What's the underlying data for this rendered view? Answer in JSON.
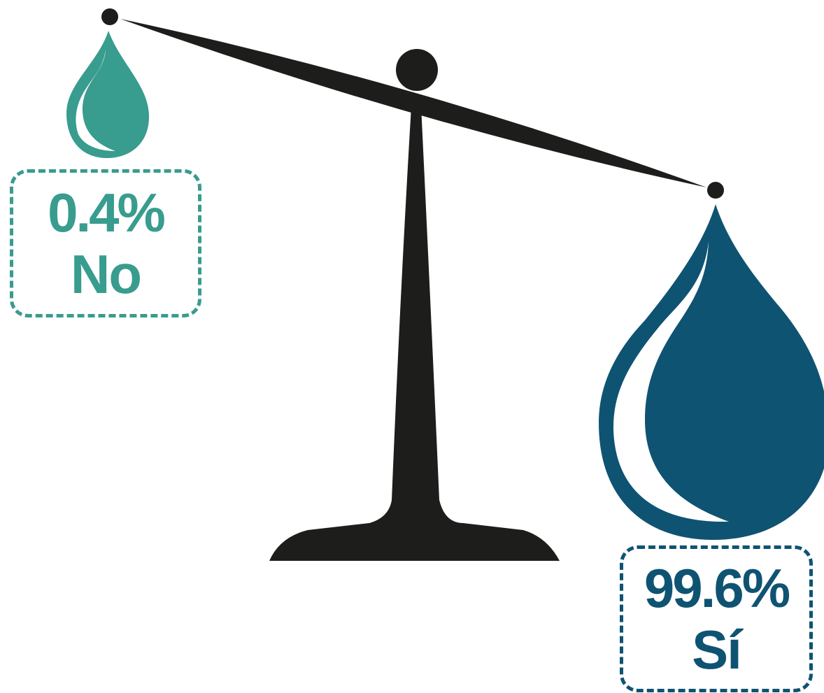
{
  "chart_data": {
    "type": "pie",
    "categories": [
      "No",
      "Sí"
    ],
    "values": [
      0.4,
      99.6
    ],
    "labels": {
      "no_pct": "0.4%",
      "no_answer": "No",
      "si_pct": "99.6%",
      "si_answer": "Sí"
    },
    "colors": {
      "no": "#389c8e",
      "si": "#0f5372",
      "scale": "#1d1d1b"
    },
    "title": ""
  }
}
